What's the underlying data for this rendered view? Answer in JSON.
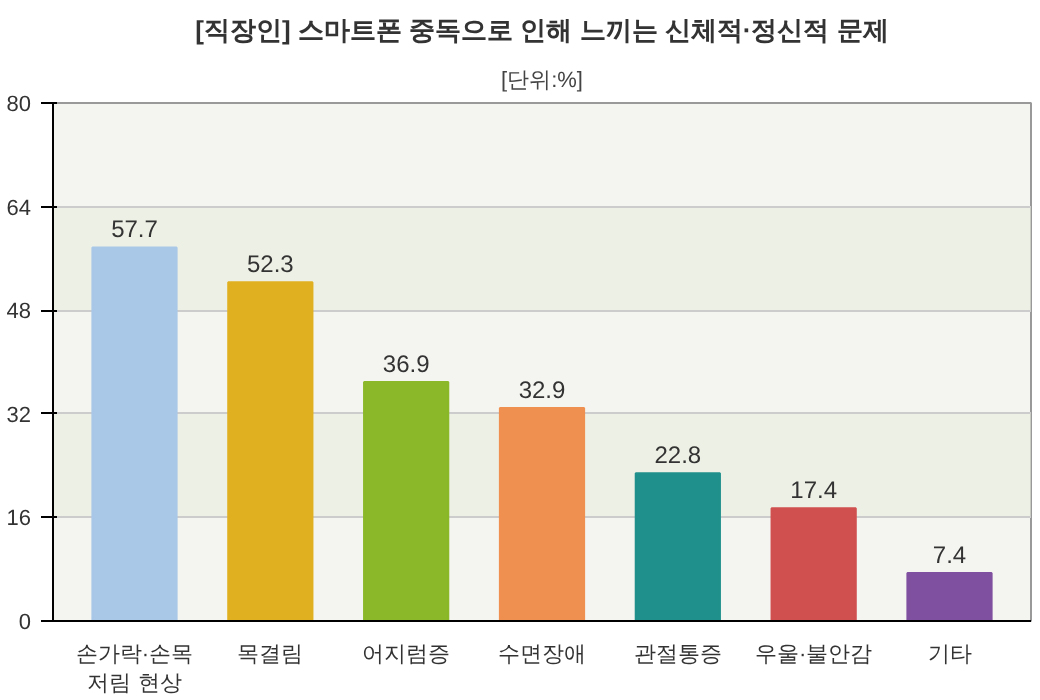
{
  "chart_data": {
    "type": "bar",
    "title": "[직장인] 스마트폰 중독으로 인해 느끼는 신체적·정신적 문제",
    "subtitle": "[단위:%]",
    "categories": [
      "손가락·손목\n저림 현상",
      "목결림",
      "어지럼증",
      "수면장애",
      "관절통증",
      "우울·불안감",
      "기타"
    ],
    "values": [
      57.7,
      52.3,
      36.9,
      32.9,
      22.8,
      17.4,
      7.4
    ],
    "colors": [
      "#a9c8e8",
      "#e0b020",
      "#8ab828",
      "#f09050",
      "#20908c",
      "#d05050",
      "#8050a0"
    ],
    "ylim": [
      0,
      80
    ],
    "yticks": [
      0,
      16,
      32,
      48,
      64,
      80
    ],
    "grid": "y",
    "data_labels": true
  }
}
